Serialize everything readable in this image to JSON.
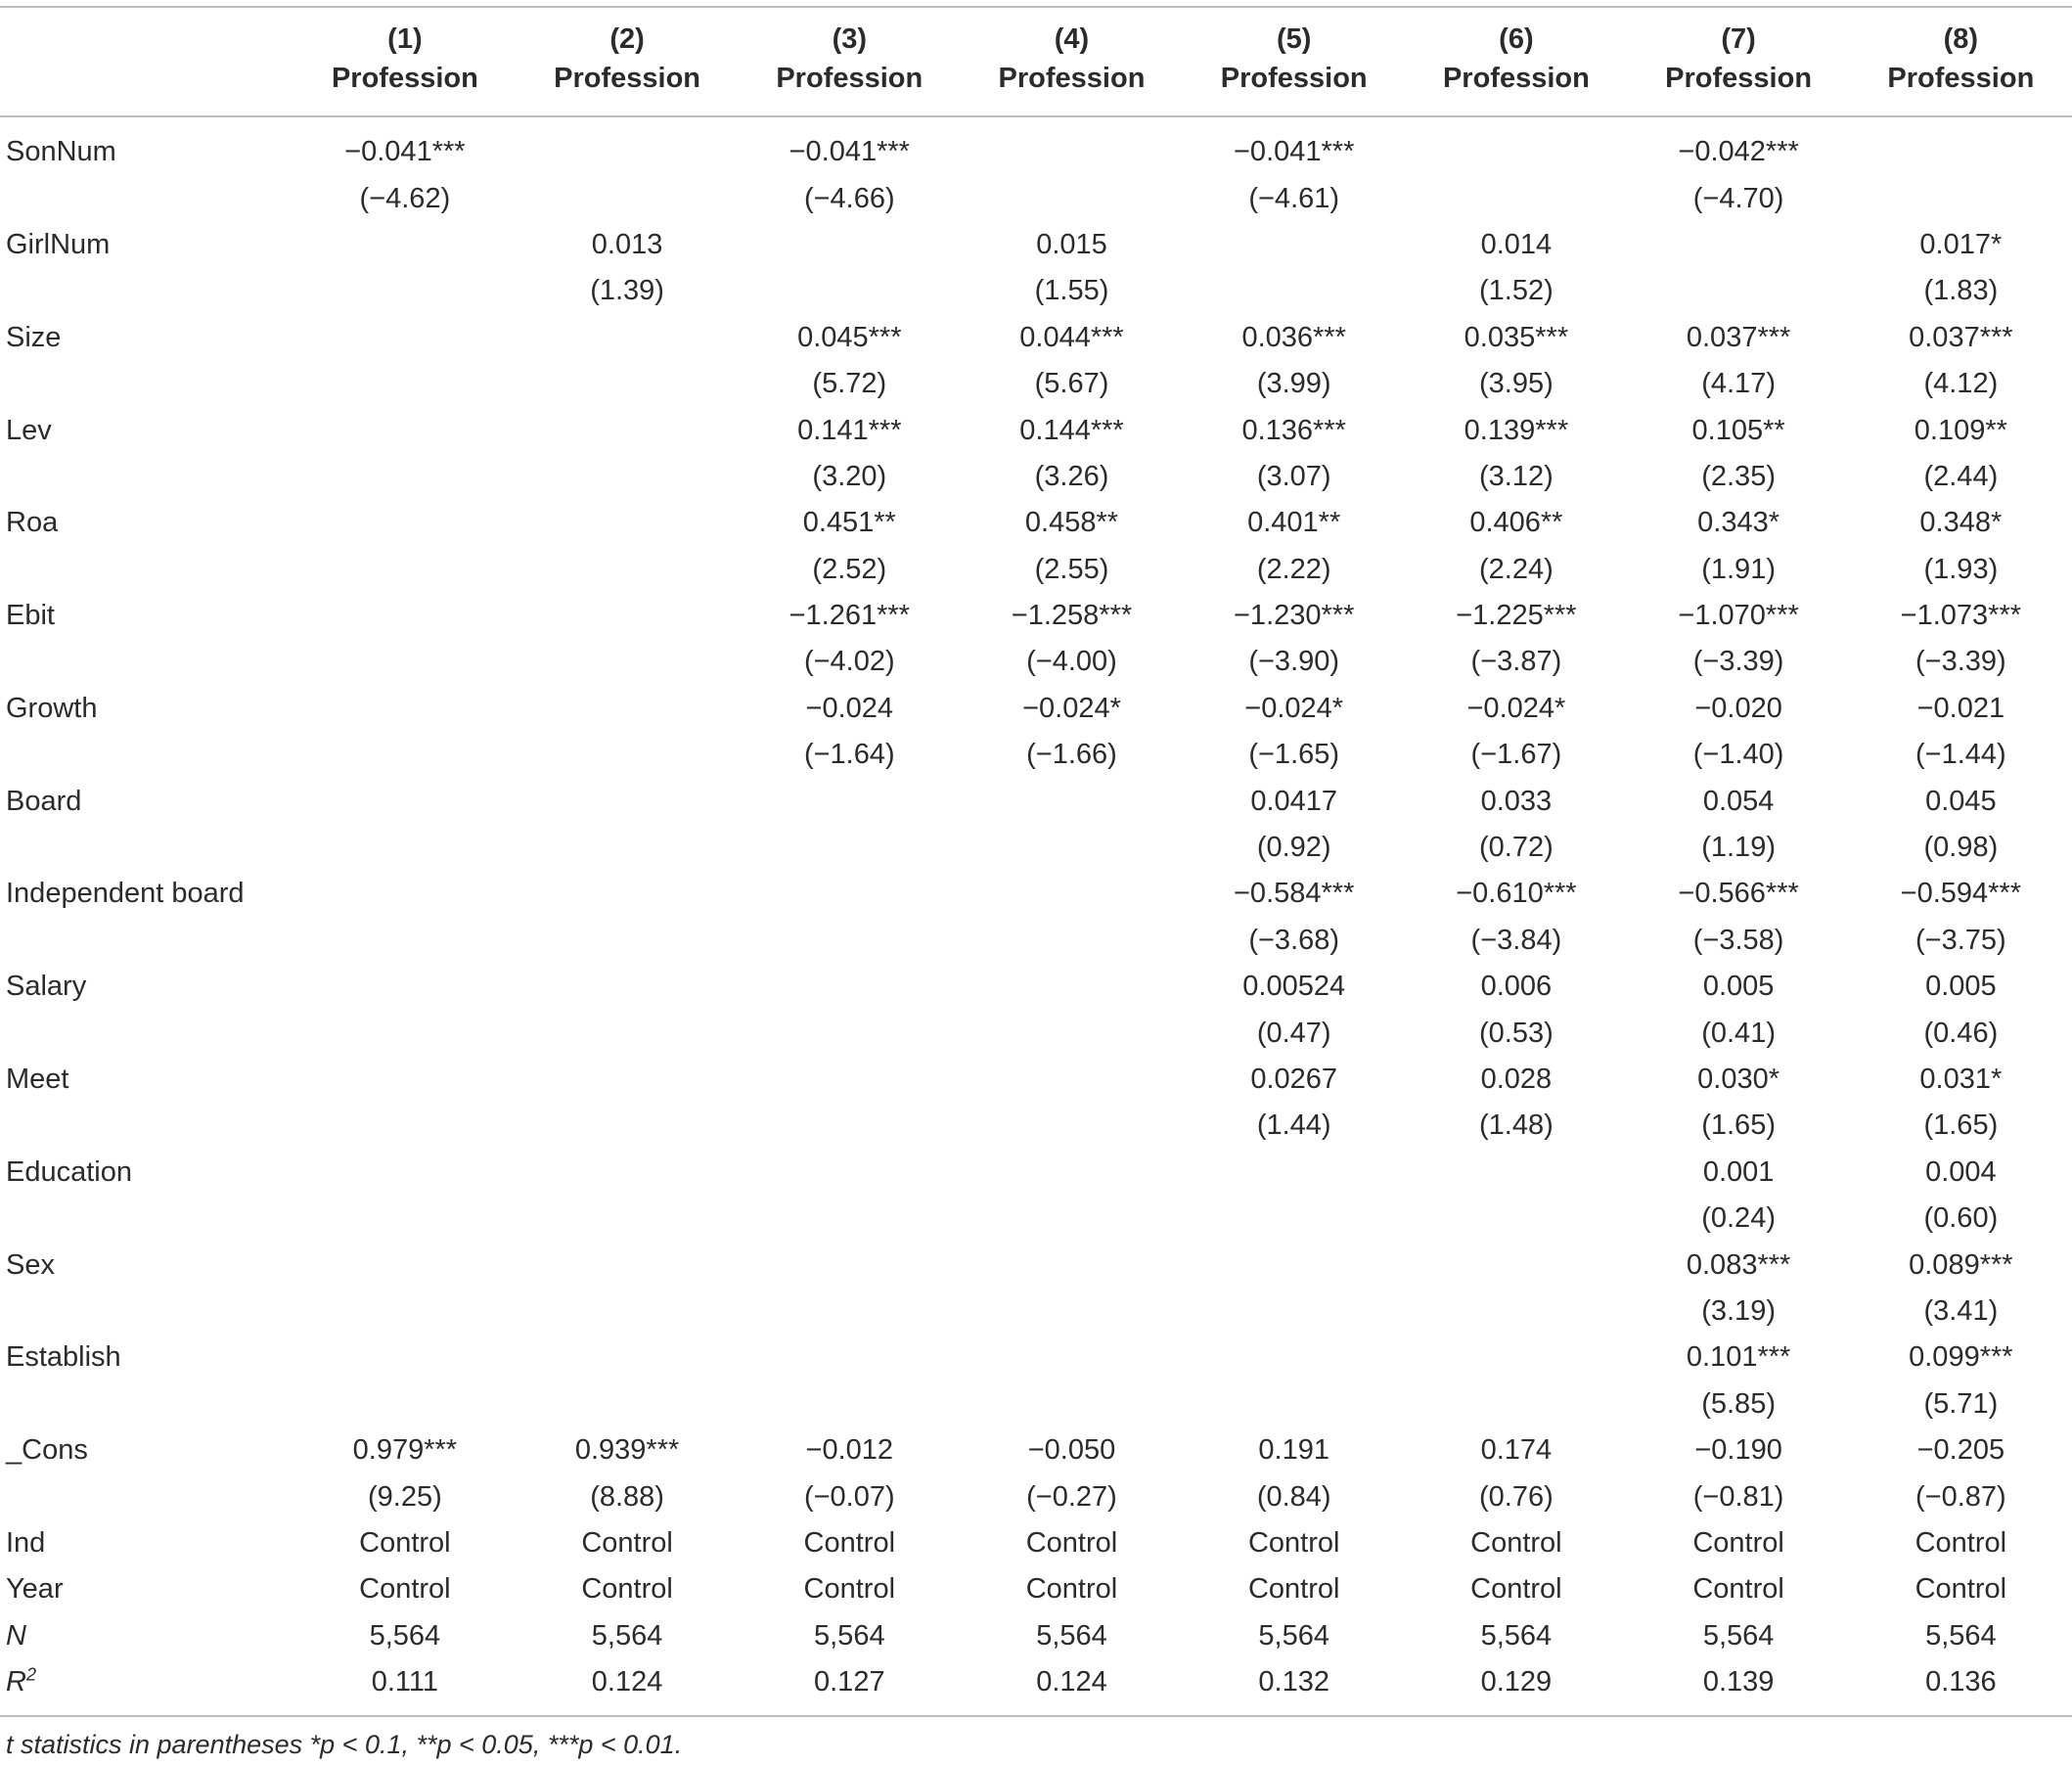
{
  "columns": [
    {
      "num": "(1)",
      "label": "Profession"
    },
    {
      "num": "(2)",
      "label": "Profession"
    },
    {
      "num": "(3)",
      "label": "Profession"
    },
    {
      "num": "(4)",
      "label": "Profession"
    },
    {
      "num": "(5)",
      "label": "Profession"
    },
    {
      "num": "(6)",
      "label": "Profession"
    },
    {
      "num": "(7)",
      "label": "Profession"
    },
    {
      "num": "(8)",
      "label": "Profession"
    }
  ],
  "rows": [
    {
      "label": "SonNum",
      "values": [
        "−0.041***",
        "",
        "−0.041***",
        "",
        "−0.041***",
        "",
        "−0.042***",
        ""
      ]
    },
    {
      "label": "",
      "values": [
        "(−4.62)",
        "",
        "(−4.66)",
        "",
        "(−4.61)",
        "",
        "(−4.70)",
        ""
      ]
    },
    {
      "label": "GirlNum",
      "values": [
        "",
        "0.013",
        "",
        "0.015",
        "",
        "0.014",
        "",
        "0.017*"
      ]
    },
    {
      "label": "",
      "values": [
        "",
        "(1.39)",
        "",
        "(1.55)",
        "",
        "(1.52)",
        "",
        "(1.83)"
      ]
    },
    {
      "label": "Size",
      "values": [
        "",
        "",
        "0.045***",
        "0.044***",
        "0.036***",
        "0.035***",
        "0.037***",
        "0.037***"
      ]
    },
    {
      "label": "",
      "values": [
        "",
        "",
        "(5.72)",
        "(5.67)",
        "(3.99)",
        "(3.95)",
        "(4.17)",
        "(4.12)"
      ]
    },
    {
      "label": "Lev",
      "values": [
        "",
        "",
        "0.141***",
        "0.144***",
        "0.136***",
        "0.139***",
        "0.105**",
        "0.109**"
      ]
    },
    {
      "label": "",
      "values": [
        "",
        "",
        "(3.20)",
        "(3.26)",
        "(3.07)",
        "(3.12)",
        "(2.35)",
        "(2.44)"
      ]
    },
    {
      "label": "Roa",
      "values": [
        "",
        "",
        "0.451**",
        "0.458**",
        "0.401**",
        "0.406**",
        "0.343*",
        "0.348*"
      ]
    },
    {
      "label": "",
      "values": [
        "",
        "",
        "(2.52)",
        "(2.55)",
        "(2.22)",
        "(2.24)",
        "(1.91)",
        "(1.93)"
      ]
    },
    {
      "label": "Ebit",
      "values": [
        "",
        "",
        "−1.261***",
        "−1.258***",
        "−1.230***",
        "−1.225***",
        "−1.070***",
        "−1.073***"
      ]
    },
    {
      "label": "",
      "values": [
        "",
        "",
        "(−4.02)",
        "(−4.00)",
        "(−3.90)",
        "(−3.87)",
        "(−3.39)",
        "(−3.39)"
      ]
    },
    {
      "label": "Growth",
      "values": [
        "",
        "",
        "−0.024",
        "−0.024*",
        "−0.024*",
        "−0.024*",
        "−0.020",
        "−0.021"
      ]
    },
    {
      "label": "",
      "values": [
        "",
        "",
        "(−1.64)",
        "(−1.66)",
        "(−1.65)",
        "(−1.67)",
        "(−1.40)",
        "(−1.44)"
      ]
    },
    {
      "label": "Board",
      "values": [
        "",
        "",
        "",
        "",
        "0.0417",
        "0.033",
        "0.054",
        "0.045"
      ]
    },
    {
      "label": "",
      "values": [
        "",
        "",
        "",
        "",
        "(0.92)",
        "(0.72)",
        "(1.19)",
        "(0.98)"
      ]
    },
    {
      "label": "Independent board",
      "values": [
        "",
        "",
        "",
        "",
        "−0.584***",
        "−0.610***",
        "−0.566***",
        "−0.594***"
      ]
    },
    {
      "label": "",
      "values": [
        "",
        "",
        "",
        "",
        "(−3.68)",
        "(−3.84)",
        "(−3.58)",
        "(−3.75)"
      ]
    },
    {
      "label": "Salary",
      "values": [
        "",
        "",
        "",
        "",
        "0.00524",
        "0.006",
        "0.005",
        "0.005"
      ]
    },
    {
      "label": "",
      "values": [
        "",
        "",
        "",
        "",
        "(0.47)",
        "(0.53)",
        "(0.41)",
        "(0.46)"
      ]
    },
    {
      "label": "Meet",
      "values": [
        "",
        "",
        "",
        "",
        "0.0267",
        "0.028",
        "0.030*",
        "0.031*"
      ]
    },
    {
      "label": "",
      "values": [
        "",
        "",
        "",
        "",
        "(1.44)",
        "(1.48)",
        "(1.65)",
        "(1.65)"
      ]
    },
    {
      "label": "Education",
      "values": [
        "",
        "",
        "",
        "",
        "",
        "",
        "0.001",
        "0.004"
      ]
    },
    {
      "label": "",
      "values": [
        "",
        "",
        "",
        "",
        "",
        "",
        "(0.24)",
        "(0.60)"
      ]
    },
    {
      "label": "Sex",
      "values": [
        "",
        "",
        "",
        "",
        "",
        "",
        "0.083***",
        "0.089***"
      ]
    },
    {
      "label": "",
      "values": [
        "",
        "",
        "",
        "",
        "",
        "",
        "(3.19)",
        "(3.41)"
      ]
    },
    {
      "label": "Establish",
      "values": [
        "",
        "",
        "",
        "",
        "",
        "",
        "0.101***",
        "0.099***"
      ]
    },
    {
      "label": "",
      "values": [
        "",
        "",
        "",
        "",
        "",
        "",
        "(5.85)",
        "(5.71)"
      ]
    },
    {
      "label": "_Cons",
      "values": [
        "0.979***",
        "0.939***",
        "−0.012",
        "−0.050",
        "0.191",
        "0.174",
        "−0.190",
        "−0.205"
      ]
    },
    {
      "label": "",
      "values": [
        "(9.25)",
        "(8.88)",
        "(−0.07)",
        "(−0.27)",
        "(0.84)",
        "(0.76)",
        "(−0.81)",
        "(−0.87)"
      ]
    },
    {
      "label": "Ind",
      "values": [
        "Control",
        "Control",
        "Control",
        "Control",
        "Control",
        "Control",
        "Control",
        "Control"
      ]
    },
    {
      "label": "Year",
      "values": [
        "Control",
        "Control",
        "Control",
        "Control",
        "Control",
        "Control",
        "Control",
        "Control"
      ]
    },
    {
      "label": "N",
      "italic": true,
      "values": [
        "5,564",
        "5,564",
        "5,564",
        "5,564",
        "5,564",
        "5,564",
        "5,564",
        "5,564"
      ]
    },
    {
      "label": "R",
      "sup": "2",
      "italic": true,
      "values": [
        "0.111",
        "0.124",
        "0.127",
        "0.124",
        "0.132",
        "0.129",
        "0.139",
        "0.136"
      ]
    }
  ],
  "footnote": "t statistics in parentheses *p < 0.1, **p < 0.05, ***p < 0.01."
}
